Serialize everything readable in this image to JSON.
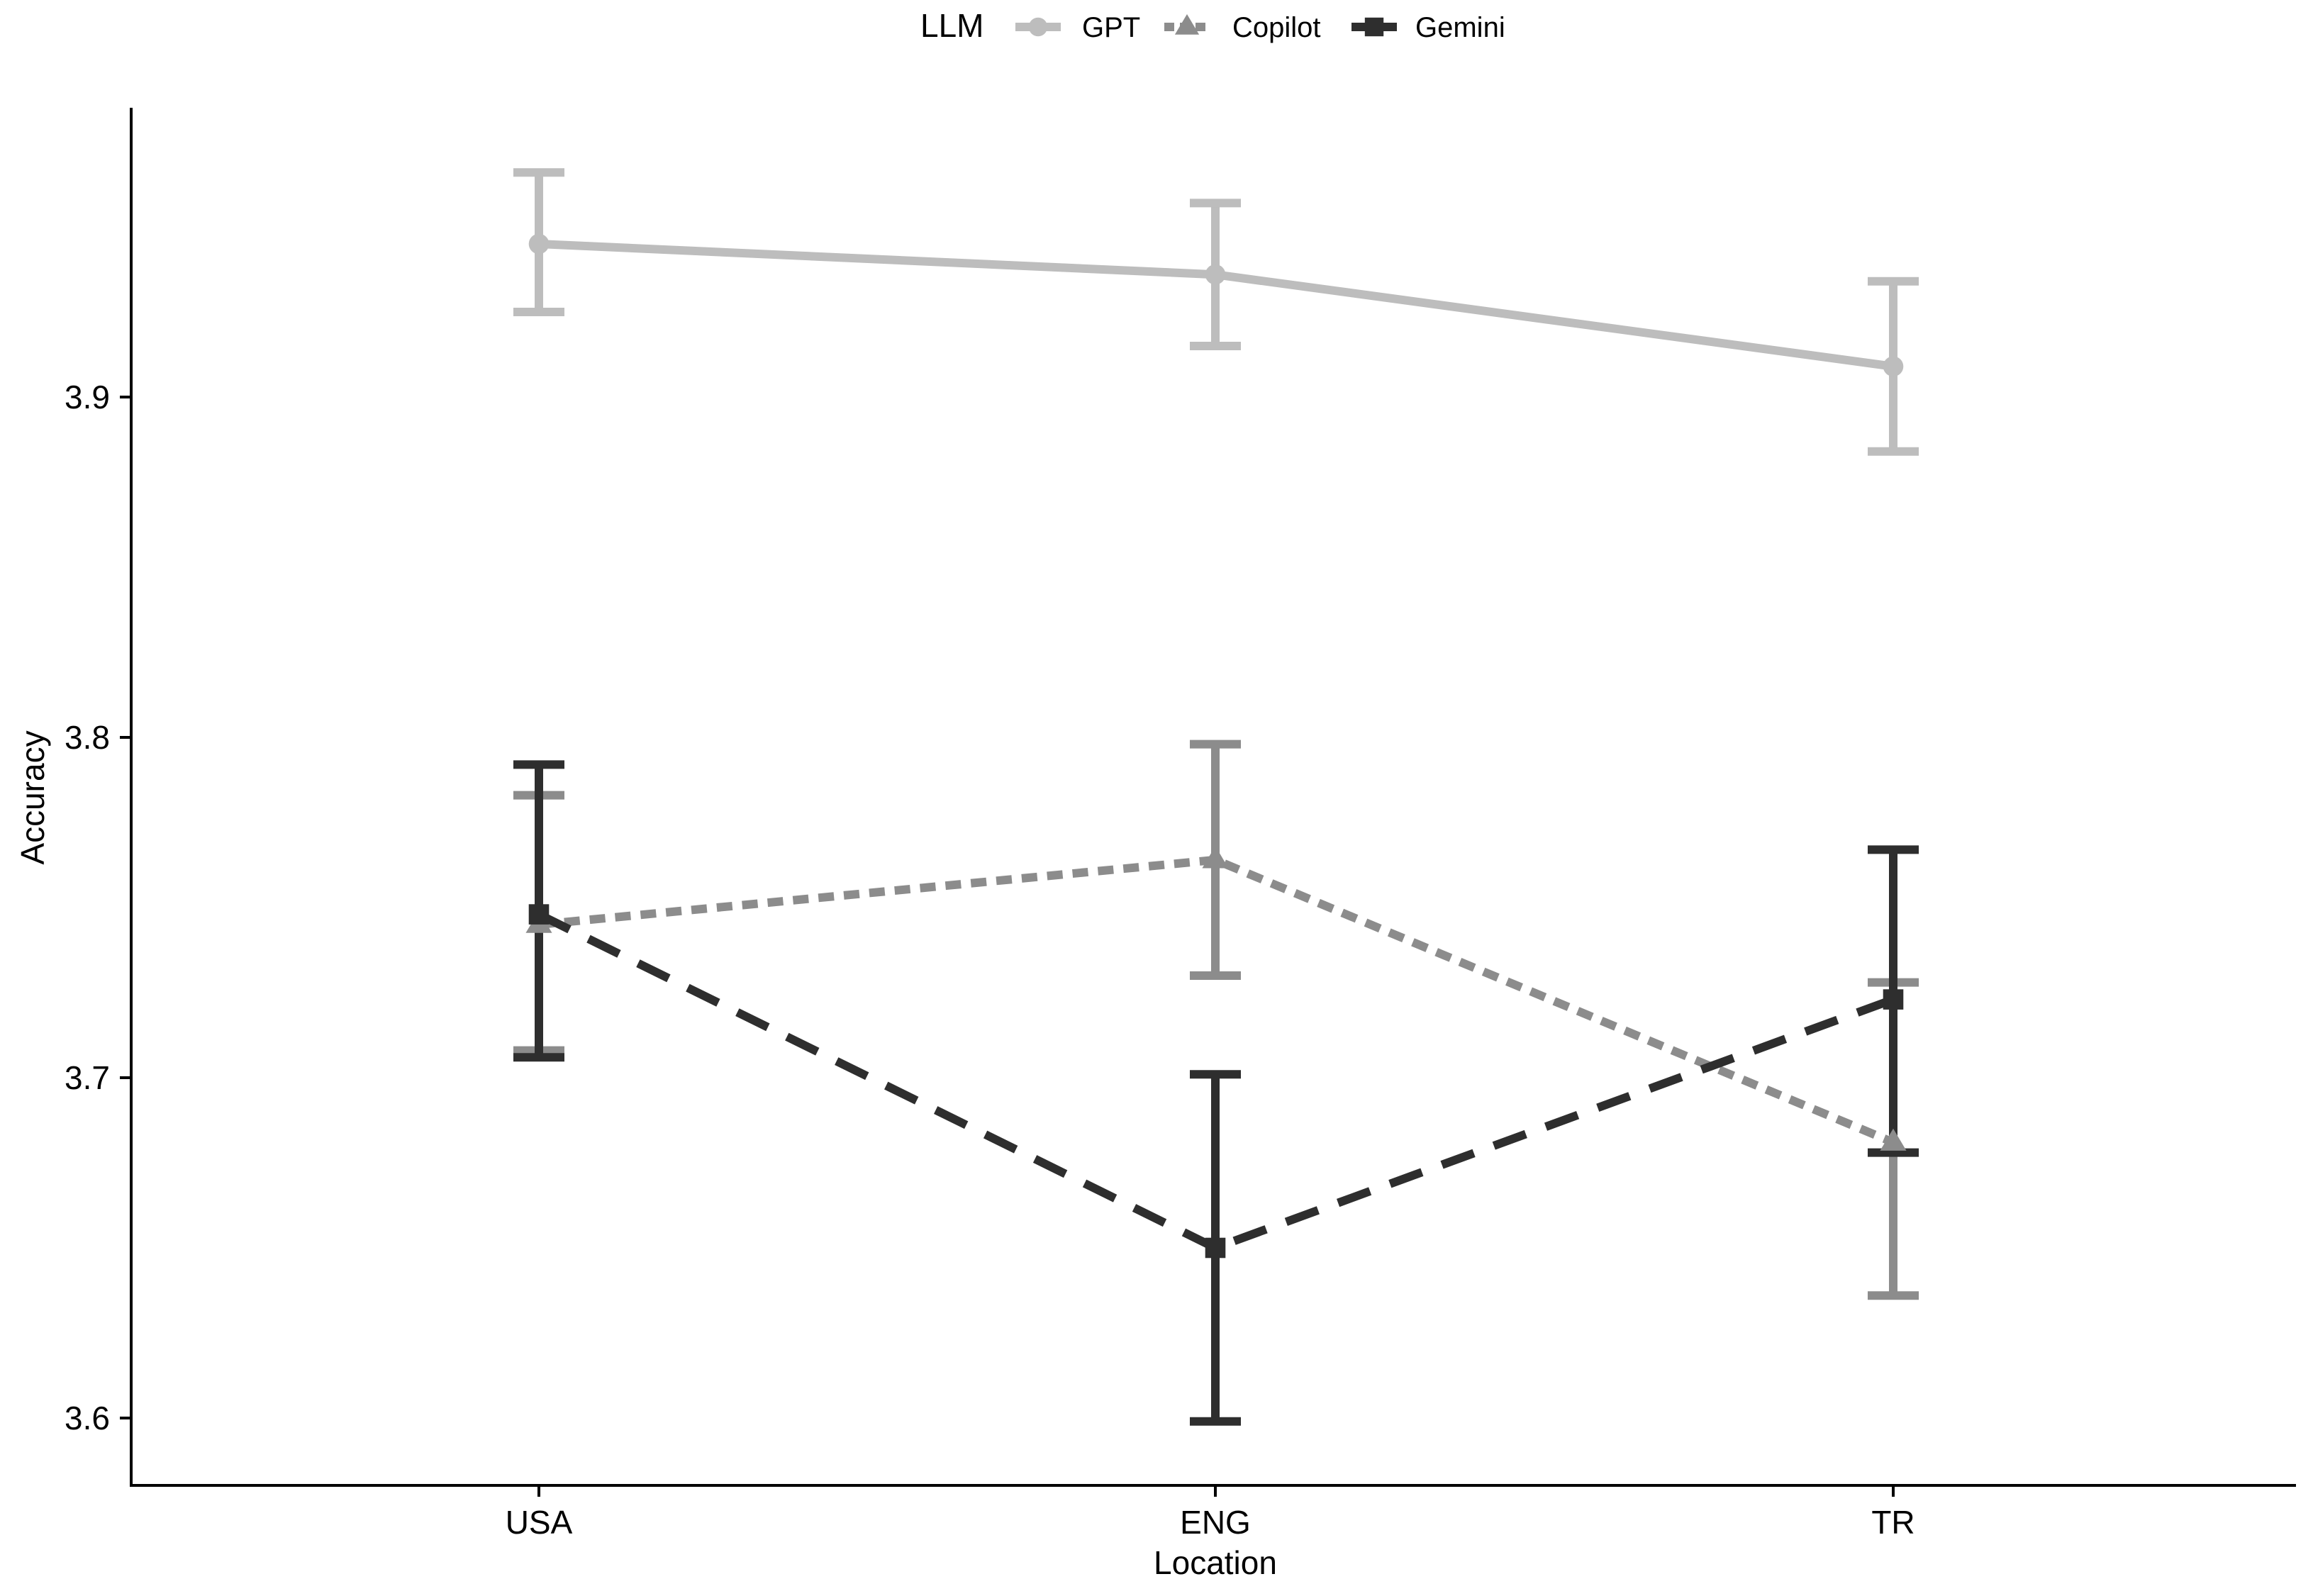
{
  "chart_data": {
    "type": "line",
    "title": "",
    "xlabel": "Location",
    "ylabel": "Accuracy",
    "categories": [
      "USA",
      "ENG",
      "TR"
    ],
    "ylim": [
      3.58,
      3.98
    ],
    "yticks": [
      3.6,
      3.7,
      3.8,
      3.9
    ],
    "ytick_labels": [
      "3.6",
      "3.7",
      "3.8",
      "3.9"
    ],
    "grid": false,
    "legend": {
      "title": "LLM",
      "position": "top"
    },
    "series": [
      {
        "name": "GPT",
        "values": [
          3.945,
          3.936,
          3.909
        ],
        "error_low": [
          3.925,
          3.915,
          3.884
        ],
        "error_high": [
          3.966,
          3.957,
          3.934
        ],
        "color": "#bdbdbd",
        "line_style": "solid",
        "marker": "circle"
      },
      {
        "name": "Copilot",
        "values": [
          3.745,
          3.764,
          3.681
        ],
        "error_low": [
          3.708,
          3.73,
          3.636
        ],
        "error_high": [
          3.783,
          3.798,
          3.728
        ],
        "color": "#8c8c8c",
        "line_style": "dotted",
        "marker": "triangle"
      },
      {
        "name": "Gemini",
        "values": [
          3.748,
          3.65,
          3.723
        ],
        "error_low": [
          3.706,
          3.599,
          3.678
        ],
        "error_high": [
          3.792,
          3.701,
          3.767
        ],
        "color": "#2e2e2e",
        "line_style": "dashed",
        "marker": "square"
      }
    ]
  }
}
